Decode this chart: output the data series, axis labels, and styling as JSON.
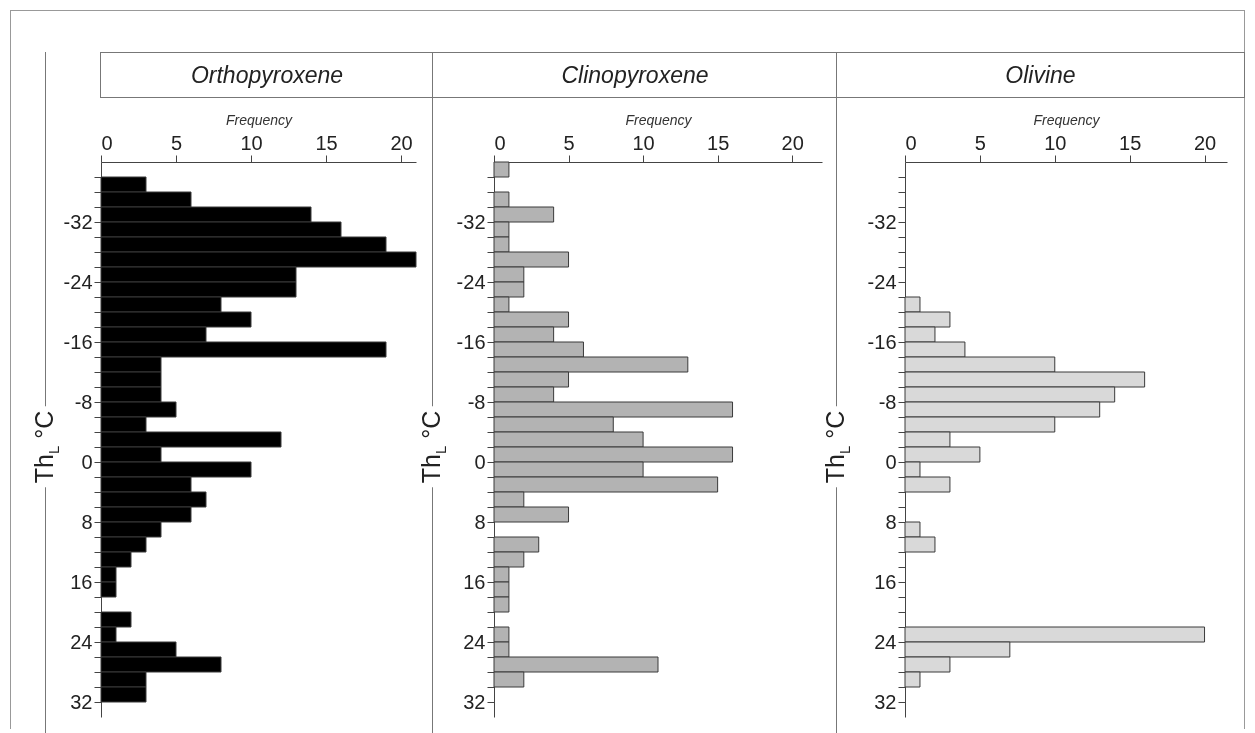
{
  "chart_data": [
    {
      "type": "histogram",
      "orientation": "horizontal",
      "title": "Orthopyroxene",
      "xlabel": "Frequency",
      "ylabel": "Th$_{L}$ °C",
      "color": "#000000",
      "bins": [
        -40,
        -38,
        -36,
        -34,
        -32,
        -30,
        -28,
        -26,
        -24,
        -22,
        -20,
        -18,
        -16,
        -14,
        -12,
        -10,
        -8,
        -6,
        -4,
        -2,
        0,
        2,
        4,
        6,
        8,
        10,
        12,
        14,
        16,
        18,
        20,
        22,
        24,
        26,
        28,
        30,
        32
      ],
      "values": [
        0,
        3,
        6,
        14,
        16,
        19,
        21,
        13,
        13,
        8,
        10,
        7,
        19,
        4,
        4,
        4,
        5,
        3,
        12,
        4,
        10,
        6,
        7,
        6,
        4,
        3,
        2,
        1,
        1,
        0,
        2,
        1,
        5,
        8,
        3,
        3
      ],
      "xlim": [
        0,
        21
      ],
      "xticks": [
        0,
        5,
        10,
        15,
        20
      ],
      "ylim": [
        34,
        -40
      ],
      "yticks": [
        {
          "value": -38,
          "label": null
        },
        {
          "value": -36,
          "label": null
        },
        {
          "value": -34,
          "label": null
        },
        -32,
        {
          "value": -30,
          "label": null
        },
        {
          "value": -28,
          "label": null
        },
        {
          "value": -26,
          "label": null
        },
        -24,
        {
          "value": -22,
          "label": null
        },
        {
          "value": -20,
          "label": null
        },
        {
          "value": -18,
          "label": null
        },
        -16,
        {
          "value": -14,
          "label": null
        },
        {
          "value": -12,
          "label": null
        },
        {
          "value": -10,
          "label": null
        },
        -8,
        {
          "value": -6,
          "label": null
        },
        {
          "value": -4,
          "label": null
        },
        {
          "value": -2,
          "label": null
        },
        0,
        {
          "value": 2,
          "label": null
        },
        {
          "value": 4,
          "label": null
        },
        {
          "value": 6,
          "label": null
        },
        8,
        {
          "value": 10,
          "label": null
        },
        {
          "value": 12,
          "label": null
        },
        {
          "value": 14,
          "label": null
        },
        16,
        {
          "value": 18,
          "label": null
        },
        {
          "value": 20,
          "label": null
        },
        {
          "value": 22,
          "label": null
        },
        24,
        {
          "value": 26,
          "label": null
        },
        {
          "value": 28,
          "label": null
        },
        {
          "value": 30,
          "label": null
        },
        32
      ]
    },
    {
      "type": "histogram",
      "orientation": "horizontal",
      "title": "Clinopyroxene",
      "xlabel": "Frequency",
      "ylabel": "Th$_{L}$ °C",
      "color": "#b3b3b3",
      "bins": [
        -40,
        -38,
        -36,
        -34,
        -32,
        -30,
        -28,
        -26,
        -24,
        -22,
        -20,
        -18,
        -16,
        -14,
        -12,
        -10,
        -8,
        -6,
        -4,
        -2,
        0,
        2,
        4,
        6,
        8,
        10,
        12,
        14,
        16,
        18,
        20,
        22,
        24,
        26,
        28,
        30,
        32
      ],
      "values": [
        1,
        0,
        1,
        4,
        1,
        1,
        5,
        2,
        2,
        1,
        5,
        4,
        6,
        13,
        5,
        4,
        16,
        8,
        10,
        16,
        10,
        15,
        2,
        5,
        0,
        3,
        2,
        1,
        1,
        1,
        0,
        1,
        1,
        11,
        2,
        0
      ],
      "xlim": [
        0,
        22
      ],
      "xticks": [
        0,
        5,
        10,
        15,
        20
      ],
      "ylim": [
        34,
        -40
      ],
      "yticks": [
        {
          "value": -38,
          "label": null
        },
        {
          "value": -36,
          "label": null
        },
        {
          "value": -34,
          "label": null
        },
        -32,
        {
          "value": -30,
          "label": null
        },
        {
          "value": -28,
          "label": null
        },
        {
          "value": -26,
          "label": null
        },
        -24,
        {
          "value": -22,
          "label": null
        },
        {
          "value": -20,
          "label": null
        },
        {
          "value": -18,
          "label": null
        },
        -16,
        {
          "value": -14,
          "label": null
        },
        {
          "value": -12,
          "label": null
        },
        {
          "value": -10,
          "label": null
        },
        -8,
        {
          "value": -6,
          "label": null
        },
        {
          "value": -4,
          "label": null
        },
        {
          "value": -2,
          "label": null
        },
        0,
        {
          "value": 2,
          "label": null
        },
        {
          "value": 4,
          "label": null
        },
        {
          "value": 6,
          "label": null
        },
        8,
        {
          "value": 10,
          "label": null
        },
        {
          "value": 12,
          "label": null
        },
        {
          "value": 14,
          "label": null
        },
        16,
        {
          "value": 18,
          "label": null
        },
        {
          "value": 20,
          "label": null
        },
        {
          "value": 22,
          "label": null
        },
        24,
        {
          "value": 26,
          "label": null
        },
        {
          "value": 28,
          "label": null
        },
        {
          "value": 30,
          "label": null
        },
        32
      ]
    },
    {
      "type": "histogram",
      "orientation": "horizontal",
      "title": "Olivine",
      "xlabel": "Frequency",
      "ylabel": "Th$_{L}$ °C",
      "color": "#d9d9d9",
      "bins": [
        -40,
        -38,
        -36,
        -34,
        -32,
        -30,
        -28,
        -26,
        -24,
        -22,
        -20,
        -18,
        -16,
        -14,
        -12,
        -10,
        -8,
        -6,
        -4,
        -2,
        0,
        2,
        4,
        6,
        8,
        10,
        12,
        14,
        16,
        18,
        20,
        22,
        24,
        26,
        28,
        30,
        32
      ],
      "values": [
        0,
        0,
        0,
        0,
        0,
        0,
        0,
        0,
        0,
        1,
        3,
        2,
        4,
        10,
        16,
        14,
        13,
        10,
        3,
        5,
        1,
        3,
        0,
        0,
        1,
        2,
        0,
        0,
        0,
        0,
        0,
        20,
        7,
        3,
        1,
        0
      ],
      "xlim": [
        0,
        21.5
      ],
      "xticks": [
        0,
        5,
        10,
        15,
        20
      ],
      "ylim": [
        34,
        -40
      ],
      "yticks": [
        {
          "value": -38,
          "label": null
        },
        {
          "value": -36,
          "label": null
        },
        {
          "value": -34,
          "label": null
        },
        -32,
        {
          "value": -30,
          "label": null
        },
        {
          "value": -28,
          "label": null
        },
        {
          "value": -26,
          "label": null
        },
        -24,
        {
          "value": -22,
          "label": null
        },
        {
          "value": -20,
          "label": null
        },
        {
          "value": -18,
          "label": null
        },
        -16,
        {
          "value": -14,
          "label": null
        },
        {
          "value": -12,
          "label": null
        },
        {
          "value": -10,
          "label": null
        },
        -8,
        {
          "value": -6,
          "label": null
        },
        {
          "value": -4,
          "label": null
        },
        {
          "value": -2,
          "label": null
        },
        0,
        {
          "value": 2,
          "label": null
        },
        {
          "value": 4,
          "label": null
        },
        {
          "value": 6,
          "label": null
        },
        8,
        {
          "value": 10,
          "label": null
        },
        {
          "value": 12,
          "label": null
        },
        {
          "value": 14,
          "label": null
        },
        16,
        {
          "value": 18,
          "label": null
        },
        {
          "value": 20,
          "label": null
        },
        {
          "value": 22,
          "label": null
        },
        24,
        {
          "value": 26,
          "label": null
        },
        {
          "value": 28,
          "label": null
        },
        {
          "value": 30,
          "label": null
        },
        32
      ]
    }
  ]
}
